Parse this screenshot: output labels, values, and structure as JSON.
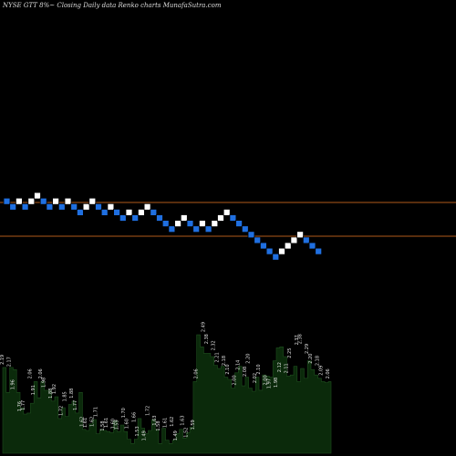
{
  "header": {
    "title": "NYSE GTT 8%~  Closing Daily data  Renko  charts MunafaSutra.com"
  },
  "colors": {
    "background": "#000000",
    "up_brick": "#ffffff",
    "down_brick": "#1f6fe0",
    "brick_border": "#000000",
    "reference_line": "#b05a1a",
    "volume_fill": "#0b2a0b",
    "volume_stroke": "#1f4f1f"
  },
  "chart_data": [
    {
      "type": "renko",
      "bricks": [
        {
          "dir": "down",
          "level": 8
        },
        {
          "dir": "down",
          "level": 7
        },
        {
          "dir": "up",
          "level": 8
        },
        {
          "dir": "down",
          "level": 7
        },
        {
          "dir": "up",
          "level": 8
        },
        {
          "dir": "up",
          "level": 9
        },
        {
          "dir": "down",
          "level": 8
        },
        {
          "dir": "down",
          "level": 7
        },
        {
          "dir": "up",
          "level": 8
        },
        {
          "dir": "down",
          "level": 7
        },
        {
          "dir": "up",
          "level": 8
        },
        {
          "dir": "down",
          "level": 7
        },
        {
          "dir": "down",
          "level": 6
        },
        {
          "dir": "up",
          "level": 7
        },
        {
          "dir": "up",
          "level": 8
        },
        {
          "dir": "down",
          "level": 7
        },
        {
          "dir": "down",
          "level": 6
        },
        {
          "dir": "up",
          "level": 7
        },
        {
          "dir": "down",
          "level": 6
        },
        {
          "dir": "down",
          "level": 5
        },
        {
          "dir": "up",
          "level": 6
        },
        {
          "dir": "down",
          "level": 5
        },
        {
          "dir": "up",
          "level": 6
        },
        {
          "dir": "up",
          "level": 7
        },
        {
          "dir": "down",
          "level": 6
        },
        {
          "dir": "down",
          "level": 5
        },
        {
          "dir": "down",
          "level": 4
        },
        {
          "dir": "down",
          "level": 3
        },
        {
          "dir": "up",
          "level": 4
        },
        {
          "dir": "up",
          "level": 5
        },
        {
          "dir": "down",
          "level": 4
        },
        {
          "dir": "down",
          "level": 3
        },
        {
          "dir": "up",
          "level": 4
        },
        {
          "dir": "down",
          "level": 3
        },
        {
          "dir": "up",
          "level": 4
        },
        {
          "dir": "up",
          "level": 5
        },
        {
          "dir": "up",
          "level": 6
        },
        {
          "dir": "down",
          "level": 5
        },
        {
          "dir": "down",
          "level": 4
        },
        {
          "dir": "down",
          "level": 3
        },
        {
          "dir": "down",
          "level": 2
        },
        {
          "dir": "down",
          "level": 1
        },
        {
          "dir": "down",
          "level": 0
        },
        {
          "dir": "down",
          "level": -1
        },
        {
          "dir": "down",
          "level": -2
        },
        {
          "dir": "up",
          "level": -1
        },
        {
          "dir": "up",
          "level": 0
        },
        {
          "dir": "up",
          "level": 1
        },
        {
          "dir": "up",
          "level": 2
        },
        {
          "dir": "down",
          "level": 1
        },
        {
          "dir": "down",
          "level": 0
        },
        {
          "dir": "down",
          "level": -1
        }
      ],
      "reference_lines": [
        "upper",
        "lower"
      ]
    },
    {
      "type": "area",
      "series": [
        {
          "values": [
            2.19,
            1.96,
            2.19,
            2.17,
            1.96,
            1.82,
            1.76,
            1.77,
            1.86,
            2.06,
            1.91,
            2.06,
            1.98,
            1.98,
            1.88,
            1.92,
            1.72,
            1.82,
            1.74,
            1.85,
            1.88,
            1.77,
            1.96,
            1.62,
            1.61,
            1.67,
            1.71,
            1.58,
            1.62,
            1.61,
            1.6,
            1.59,
            1.7,
            1.6,
            1.66,
            1.6,
            1.53,
            1.49,
            1.53,
            1.72,
            1.63,
            1.58,
            1.61,
            1.71,
            1.62,
            1.49,
            1.63,
            1.52,
            1.49,
            1.52,
            1.58,
            1.62,
            1.54,
            1.59,
            1.64,
            2.06,
            2.49,
            2.38,
            2.32,
            2.32,
            2.29,
            2.21,
            2.18,
            2.2,
            2.1,
            2.08,
            2.0,
            2.14,
            2.2,
            2.02,
            2.1,
            2.0,
            1.97,
            2.1,
            1.98,
            2.12,
            2.11,
            2.1,
            2.25,
            2.37,
            2.38,
            2.29,
            2.11,
            2.12,
            2.2,
            2.06,
            2.18,
            2.09,
            2.25,
            2.17,
            2.12,
            2.09,
            2.06,
            2.05,
            2.06
          ]
        }
      ],
      "value_labels": [
        "2.19",
        "2.17",
        "1.96",
        "1.76",
        "1.77",
        "2.06",
        "1.91",
        "2.06",
        "1.98",
        "1.88",
        "1.92",
        "1.72",
        "1.85",
        "1.88",
        "1.77",
        "1.62",
        "1.61",
        "1.62",
        "1.71",
        "1.58",
        "1.61",
        "1.60",
        "1.59",
        "1.70",
        "1.60",
        "1.66",
        "1.53",
        "1.49",
        "1.72",
        "1.63",
        "1.58",
        "1.61",
        "1.62",
        "1.49",
        "1.63",
        "1.52",
        "1.59",
        "2.06",
        "2.49",
        "2.38",
        "2.32",
        "2.21",
        "2.18",
        "2.10",
        "2.00",
        "2.14",
        "2.08",
        "2.20",
        "2.02",
        "2.10",
        "2.00",
        "1.97",
        "1.98",
        "2.12",
        "2.11",
        "2.25",
        "2.37",
        "2.38",
        "2.29",
        "2.20",
        "2.18",
        "2.09",
        "2.06"
      ],
      "label_positions": []
    }
  ]
}
